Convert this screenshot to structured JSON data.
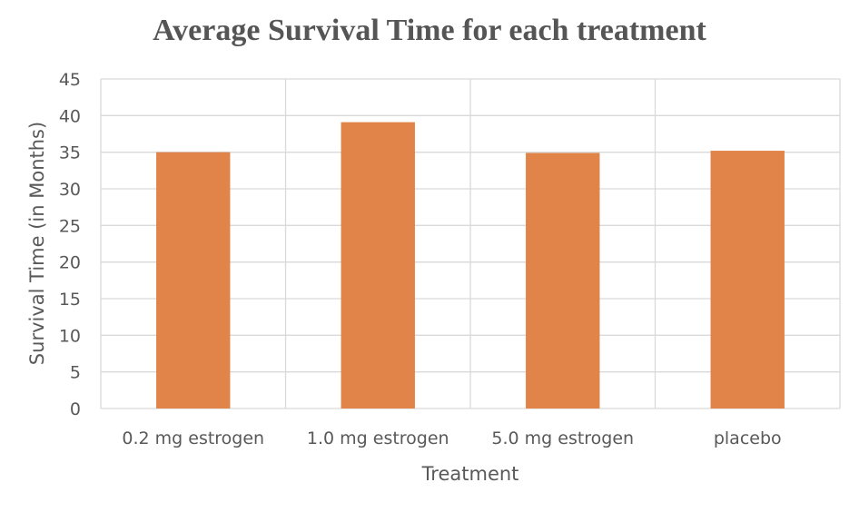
{
  "chart_data": {
    "type": "bar",
    "title": "Average Survival Time for each treatment",
    "xlabel": "Treatment",
    "ylabel": "Survival Time (in Months)",
    "categories": [
      "0.2 mg estrogen",
      "1.0 mg estrogen",
      "5.0 mg estrogen",
      "placebo"
    ],
    "values": [
      35.0,
      39.1,
      34.9,
      35.2
    ],
    "ylim": [
      0,
      45
    ],
    "yticks": [
      "0",
      "5",
      "10",
      "15",
      "20",
      "25",
      "30",
      "35",
      "40",
      "45"
    ],
    "grid": true,
    "legend": "none",
    "bar_color": "#e0844a"
  }
}
